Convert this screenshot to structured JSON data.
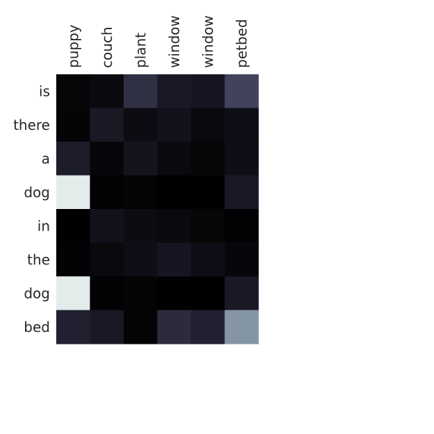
{
  "chart_data": {
    "type": "heatmap",
    "title": "",
    "xlabel": "",
    "ylabel": "",
    "x_tick_position": "top",
    "x_tick_rotation": "vertical",
    "grid": false,
    "colorbar": false,
    "x_categories": [
      "puppy",
      "couch",
      "plant",
      "window",
      "window",
      "petbed"
    ],
    "y_categories": [
      "is",
      "there",
      "a",
      "dog",
      "in",
      "the",
      "dog",
      "bed"
    ],
    "value_range": [
      0,
      1
    ],
    "values": [
      [
        0.05,
        0.08,
        0.35,
        0.2,
        0.18,
        0.45
      ],
      [
        0.04,
        0.2,
        0.1,
        0.15,
        0.08,
        0.12
      ],
      [
        0.22,
        0.06,
        0.16,
        0.08,
        0.05,
        0.12
      ],
      [
        0.98,
        0.02,
        0.03,
        0.01,
        0.01,
        0.2
      ],
      [
        0.0,
        0.15,
        0.1,
        0.08,
        0.05,
        0.02
      ],
      [
        0.02,
        0.08,
        0.12,
        0.18,
        0.12,
        0.06
      ],
      [
        0.98,
        0.02,
        0.03,
        0.01,
        0.01,
        0.2
      ],
      [
        0.25,
        0.2,
        0.03,
        0.32,
        0.25,
        0.7
      ]
    ],
    "colormap": [
      "#000000",
      "#0d0d14",
      "#1c1c2a",
      "#2d2d40",
      "#40405a",
      "#5a5e7c",
      "#7a8aa0",
      "#9ab0b5",
      "#c8d6d6",
      "#e9f0f0"
    ]
  }
}
